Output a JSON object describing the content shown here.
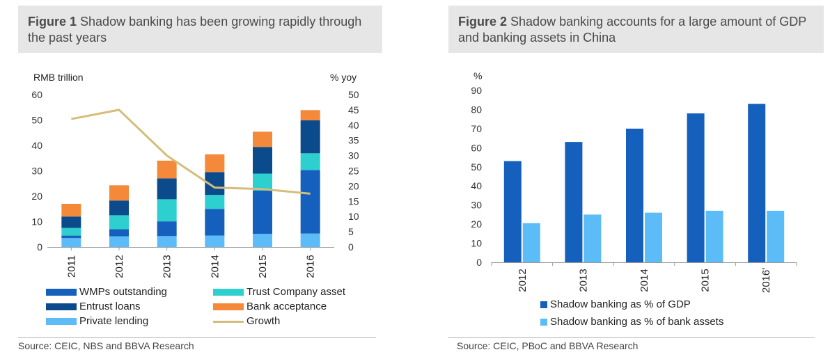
{
  "figures": [
    {
      "label": "Figure 1",
      "title": "Shadow banking has been growing rapidly through the past years",
      "source": "Source: CEIC, NBS and BBVA Research",
      "left_unit": "RMB trillion",
      "right_unit": "% yoy"
    },
    {
      "label": "Figure 2",
      "title": "Shadow banking accounts for a large amount of GDP and banking assets in China",
      "source": "Source: CEIC, PBoC and BBVA Research",
      "unit": "%"
    }
  ],
  "chart_data": [
    {
      "type": "bar",
      "stacked": true,
      "categories": [
        "2011",
        "2012",
        "2013",
        "2014",
        "2015",
        "2016"
      ],
      "series": [
        {
          "name": "Private lending",
          "values": [
            3.5,
            4.2,
            4.3,
            4.5,
            5.2,
            5.3
          ],
          "color": "#5bbcf7"
        },
        {
          "name": "WMPs outstanding",
          "values": [
            1.0,
            2.8,
            5.8,
            10.5,
            17.0,
            25.0
          ],
          "color": "#1560bd"
        },
        {
          "name": "Trust Company asset",
          "values": [
            3.0,
            5.5,
            8.7,
            5.5,
            6.7,
            6.6
          ],
          "color": "#2ecfcf"
        },
        {
          "name": "Entrust loans",
          "values": [
            4.5,
            5.8,
            8.2,
            9.0,
            10.5,
            13.0
          ],
          "color": "#0b4a8b"
        },
        {
          "name": "Bank acceptance",
          "values": [
            5.0,
            6.0,
            7.0,
            7.0,
            6.0,
            4.0
          ],
          "color": "#f5893a"
        }
      ],
      "line": {
        "name": "Growth",
        "axis": "right",
        "values": [
          42,
          45,
          30,
          19.5,
          19,
          17.5
        ],
        "color": "#d4bd7a"
      },
      "ylim": [
        0,
        60
      ],
      "yticks": [
        0,
        10,
        20,
        30,
        40,
        50,
        60
      ],
      "y2lim": [
        0,
        50
      ],
      "y2ticks": [
        0,
        5,
        10,
        15,
        20,
        25,
        30,
        35,
        40,
        45,
        50
      ],
      "ylabel": "RMB trillion",
      "y2label": "% yoy",
      "legend": [
        "WMPs outstanding",
        "Trust Company asset",
        "Entrust loans",
        "Bank acceptance",
        "Private lending",
        "Growth"
      ]
    },
    {
      "type": "bar",
      "categories": [
        "2012",
        "2013",
        "2014",
        "2015",
        "2016'"
      ],
      "series": [
        {
          "name": "Shadow banking as % of GDP",
          "values": [
            53,
            63,
            70,
            78,
            83
          ],
          "color": "#1560bd"
        },
        {
          "name": "Shadow banking as % of bank assets",
          "values": [
            20.5,
            25,
            26,
            27,
            27
          ],
          "color": "#5bbcf7"
        }
      ],
      "ylim": [
        0,
        90
      ],
      "yticks": [
        0,
        10,
        20,
        30,
        40,
        50,
        60,
        70,
        80,
        90
      ],
      "ylabel": "%"
    }
  ]
}
